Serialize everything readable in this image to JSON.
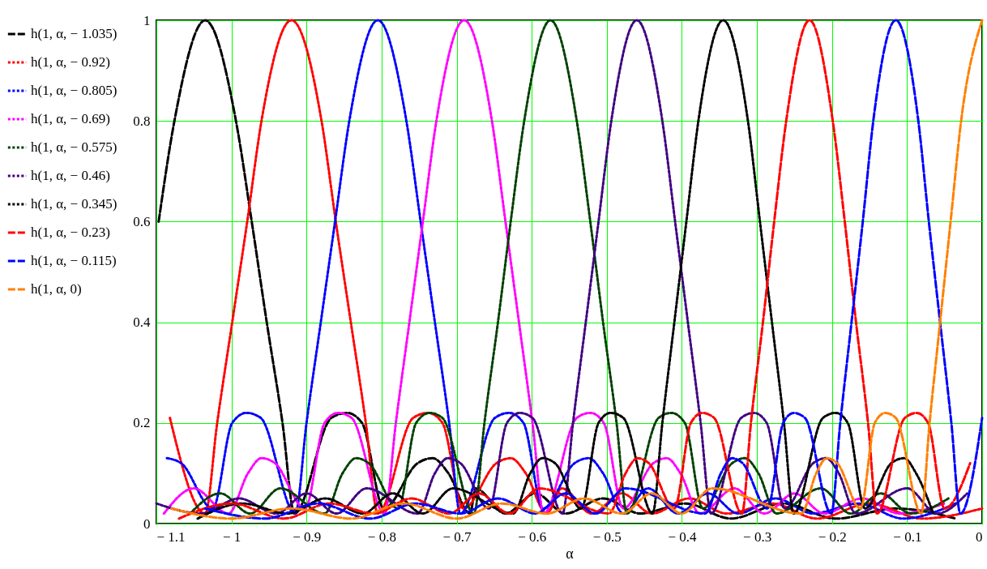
{
  "chart_data": {
    "type": "line",
    "xlabel": "α",
    "xlim": [
      -1.1,
      0
    ],
    "ylim": [
      0,
      1
    ],
    "xticks": [
      {
        "value": -1.1,
        "label": "− 1.1"
      },
      {
        "value": -1,
        "label": "− 1"
      },
      {
        "value": -0.9,
        "label": "− 0.9"
      },
      {
        "value": -0.8,
        "label": "− 0.8"
      },
      {
        "value": -0.7,
        "label": "− 0.7"
      },
      {
        "value": -0.6,
        "label": "− 0.6"
      },
      {
        "value": -0.5,
        "label": "− 0.5"
      },
      {
        "value": -0.4,
        "label": "− 0.4"
      },
      {
        "value": -0.3,
        "label": "− 0.3"
      },
      {
        "value": -0.2,
        "label": "− 0.2"
      },
      {
        "value": -0.1,
        "label": "− 0.1"
      },
      0
    ],
    "yticks": [
      0,
      0.2,
      0.4,
      0.6,
      0.8,
      1
    ],
    "grid": true,
    "legend": "left",
    "marker": "none",
    "series": [
      {
        "name": "h(1, α, − 1.035)",
        "color": "#000000",
        "line_style": "dashed",
        "x": [
          -1.097,
          -1.076,
          -1.035,
          -0.994,
          -0.973,
          -0.953,
          -0.932,
          -0.916,
          -0.867,
          -0.846,
          -0.826,
          -0.797,
          -0.752,
          -0.732,
          -0.711,
          -0.682,
          -0.675,
          -0.635,
          -0.595,
          -0.555,
          -0.505,
          -0.455,
          -0.395,
          -0.335,
          -0.265,
          -0.195,
          -0.115,
          -0.035
        ],
        "values": [
          0.6,
          0.8,
          1,
          0.8,
          0.6,
          0.4,
          0.2,
          0.02,
          0.21,
          0.22,
          0.2,
          0.03,
          0.12,
          0.13,
          0.1,
          0.02,
          0.07,
          0.02,
          0.06,
          0.02,
          0.05,
          0.02,
          0.04,
          0.01,
          0.04,
          0.01,
          0.03,
          0.01
        ]
      },
      {
        "name": "h(1, α, − 0.92)",
        "color": "#ff0000",
        "line_style": "dotted",
        "x": [
          -1.082,
          -1.035,
          -1.019,
          -0.999,
          -0.979,
          -0.96,
          -0.92,
          -0.88,
          -0.861,
          -0.841,
          -0.821,
          -0.805,
          -0.758,
          -0.738,
          -0.719,
          -0.691,
          -0.647,
          -0.628,
          -0.608,
          -0.58,
          -0.56,
          -0.52,
          -0.48,
          -0.44,
          -0.39,
          -0.34,
          -0.28,
          -0.22,
          -0.15,
          -0.08,
          0
        ],
        "values": [
          0.21,
          0.02,
          0.2,
          0.4,
          0.6,
          0.8,
          1,
          0.8,
          0.6,
          0.4,
          0.2,
          0.02,
          0.21,
          0.22,
          0.2,
          0.03,
          0.12,
          0.13,
          0.1,
          0.02,
          0.07,
          0.02,
          0.06,
          0.02,
          0.05,
          0.02,
          0.04,
          0.01,
          0.04,
          0.01,
          0.03
        ]
      },
      {
        "name": "h(1, α, − 0.805)",
        "color": "#0000ff",
        "line_style": "dotted",
        "x": [
          -1.086,
          -1.067,
          -1.025,
          -0.999,
          -0.98,
          -0.961,
          -0.915,
          -0.9,
          -0.881,
          -0.862,
          -0.843,
          -0.805,
          -0.767,
          -0.748,
          -0.729,
          -0.71,
          -0.695,
          -0.649,
          -0.63,
          -0.611,
          -0.585,
          -0.543,
          -0.524,
          -0.505,
          -0.478,
          -0.445,
          -0.405,
          -0.365,
          -0.325,
          -0.275,
          -0.225,
          -0.165,
          -0.105,
          -0.035
        ],
        "values": [
          0.13,
          0.12,
          0.03,
          0.2,
          0.22,
          0.21,
          0.02,
          0.2,
          0.4,
          0.6,
          0.8,
          1,
          0.8,
          0.6,
          0.4,
          0.2,
          0.02,
          0.21,
          0.22,
          0.2,
          0.03,
          0.12,
          0.13,
          0.1,
          0.02,
          0.07,
          0.02,
          0.06,
          0.02,
          0.05,
          0.02,
          0.04,
          0.01,
          0.04
        ]
      },
      {
        "name": "h(1, α, − 0.69)",
        "color": "#ff00ff",
        "line_style": "dotted",
        "x": [
          -1.09,
          -1.05,
          -1.004,
          -0.978,
          -0.96,
          -0.942,
          -0.902,
          -0.876,
          -0.858,
          -0.84,
          -0.796,
          -0.781,
          -0.763,
          -0.745,
          -0.727,
          -0.69,
          -0.653,
          -0.635,
          -0.617,
          -0.599,
          -0.584,
          -0.54,
          -0.522,
          -0.504,
          -0.478,
          -0.438,
          -0.42,
          -0.402,
          -0.376,
          -0.33,
          -0.29,
          -0.25,
          -0.21,
          -0.16,
          -0.11,
          -0.05
        ],
        "values": [
          0.02,
          0.07,
          0.02,
          0.1,
          0.13,
          0.12,
          0.03,
          0.2,
          0.22,
          0.21,
          0.02,
          0.2,
          0.4,
          0.6,
          0.8,
          1,
          0.8,
          0.6,
          0.4,
          0.2,
          0.02,
          0.21,
          0.22,
          0.2,
          0.03,
          0.12,
          0.13,
          0.1,
          0.02,
          0.07,
          0.02,
          0.06,
          0.02,
          0.05,
          0.02,
          0.04
        ]
      },
      {
        "name": "h(1, α, − 0.575)",
        "color": "#004000",
        "line_style": "dotted",
        "x": [
          -1.055,
          -1.015,
          -0.975,
          -0.935,
          -0.876,
          -0.852,
          -0.834,
          -0.817,
          -0.778,
          -0.754,
          -0.736,
          -0.719,
          -0.677,
          -0.663,
          -0.645,
          -0.628,
          -0.61,
          -0.575,
          -0.54,
          -0.522,
          -0.505,
          -0.487,
          -0.473,
          -0.431,
          -0.414,
          -0.396,
          -0.372,
          -0.333,
          -0.316,
          -0.298,
          -0.274,
          -0.215,
          -0.175,
          -0.135,
          -0.095,
          -0.045
        ],
        "values": [
          0.02,
          0.06,
          0.02,
          0.07,
          0.02,
          0.1,
          0.13,
          0.12,
          0.03,
          0.2,
          0.22,
          0.21,
          0.02,
          0.2,
          0.4,
          0.6,
          0.8,
          1,
          0.8,
          0.6,
          0.4,
          0.2,
          0.02,
          0.21,
          0.22,
          0.2,
          0.03,
          0.12,
          0.13,
          0.1,
          0.02,
          0.07,
          0.02,
          0.06,
          0.02,
          0.05
        ]
      },
      {
        "name": "h(1, α, − 0.46)",
        "color": "#400080",
        "line_style": "dotted",
        "x": [
          -1.1,
          -1.04,
          -0.99,
          -0.94,
          -0.9,
          -0.86,
          -0.82,
          -0.752,
          -0.729,
          -0.712,
          -0.695,
          -0.657,
          -0.633,
          -0.616,
          -0.599,
          -0.559,
          -0.545,
          -0.528,
          -0.511,
          -0.494,
          -0.46,
          -0.426,
          -0.409,
          -0.392,
          -0.375,
          -0.361,
          -0.321,
          -0.304,
          -0.287,
          -0.263,
          -0.225,
          -0.208,
          -0.191,
          -0.168,
          -0.1,
          -0.06,
          -0.02
        ],
        "values": [
          0.04,
          0.02,
          0.05,
          0.02,
          0.06,
          0.02,
          0.07,
          0.02,
          0.1,
          0.13,
          0.12,
          0.03,
          0.2,
          0.22,
          0.21,
          0.02,
          0.2,
          0.4,
          0.6,
          0.8,
          1,
          0.8,
          0.6,
          0.4,
          0.2,
          0.02,
          0.21,
          0.22,
          0.2,
          0.03,
          0.12,
          0.13,
          0.1,
          0.02,
          0.07,
          0.02,
          0.06
        ]
      },
      {
        "name": "h(1, α, − 0.345)",
        "color": "#000000",
        "line_style": "dotted",
        "x": [
          -1.045,
          -0.985,
          -0.925,
          -0.875,
          -0.825,
          -0.785,
          -0.745,
          -0.705,
          -0.625,
          -0.602,
          -0.586,
          -0.569,
          -0.534,
          -0.511,
          -0.495,
          -0.478,
          -0.439,
          -0.426,
          -0.41,
          -0.394,
          -0.378,
          -0.345,
          -0.312,
          -0.296,
          -0.28,
          -0.264,
          -0.251,
          -0.212,
          -0.195,
          -0.179,
          -0.156,
          -0.121,
          -0.104,
          -0.088,
          -0.065
        ],
        "values": [
          0.01,
          0.04,
          0.02,
          0.05,
          0.02,
          0.06,
          0.02,
          0.07,
          0.02,
          0.1,
          0.13,
          0.12,
          0.03,
          0.2,
          0.22,
          0.21,
          0.02,
          0.2,
          0.4,
          0.6,
          0.8,
          1,
          0.8,
          0.6,
          0.4,
          0.2,
          0.02,
          0.21,
          0.22,
          0.2,
          0.03,
          0.12,
          0.13,
          0.1,
          0.02
        ]
      },
      {
        "name": "h(1, α, − 0.23)",
        "color": "#ff0000",
        "line_style": "dashed",
        "x": [
          -1.07,
          -1.0,
          -0.93,
          -0.87,
          -0.81,
          -0.76,
          -0.71,
          -0.67,
          -0.63,
          -0.59,
          -0.497,
          -0.475,
          -0.459,
          -0.444,
          -0.41,
          -0.388,
          -0.373,
          -0.357,
          -0.32,
          -0.308,
          -0.292,
          -0.277,
          -0.261,
          -0.23,
          -0.199,
          -0.183,
          -0.168,
          -0.152,
          -0.14,
          -0.103,
          -0.087,
          -0.072,
          -0.05,
          -0.016
        ],
        "values": [
          0.01,
          0.04,
          0.01,
          0.04,
          0.02,
          0.05,
          0.02,
          0.06,
          0.02,
          0.07,
          0.02,
          0.1,
          0.13,
          0.12,
          0.03,
          0.2,
          0.22,
          0.21,
          0.02,
          0.2,
          0.4,
          0.6,
          0.8,
          1,
          0.8,
          0.6,
          0.4,
          0.2,
          0.02,
          0.21,
          0.22,
          0.2,
          0.03,
          0.12
        ]
      },
      {
        "name": "h(1, α, − 0.115)",
        "color": "#0000ff",
        "line_style": "dashed",
        "x": [
          -1.035,
          -0.955,
          -0.885,
          -0.815,
          -0.755,
          -0.695,
          -0.645,
          -0.595,
          -0.555,
          -0.515,
          -0.475,
          -0.369,
          -0.348,
          -0.333,
          -0.319,
          -0.286,
          -0.265,
          -0.251,
          -0.236,
          -0.201,
          -0.189,
          -0.174,
          -0.159,
          -0.145,
          -0.115,
          -0.085,
          -0.071,
          -0.056,
          -0.041,
          -0.029,
          0
        ],
        "values": [
          0.03,
          0.01,
          0.04,
          0.01,
          0.04,
          0.02,
          0.05,
          0.02,
          0.06,
          0.02,
          0.07,
          0.02,
          0.1,
          0.13,
          0.12,
          0.03,
          0.2,
          0.22,
          0.21,
          0.02,
          0.2,
          0.4,
          0.6,
          0.8,
          1,
          0.8,
          0.6,
          0.4,
          0.2,
          0.02,
          0.21
        ]
      },
      {
        "name": "h(1, α, 0)",
        "color": "#ff8000",
        "line_style": "dashed",
        "x": [
          -1.08,
          -1.0,
          -0.92,
          -0.84,
          -0.77,
          -0.7,
          -0.64,
          -0.58,
          -0.53,
          -0.48,
          -0.44,
          -0.4,
          -0.36,
          -0.241,
          -0.221,
          -0.207,
          -0.193,
          -0.162,
          -0.143,
          -0.129,
          -0.115,
          -0.081,
          -0.07,
          -0.056,
          -0.042,
          -0.028,
          0
        ],
        "values": [
          0.03,
          0.01,
          0.03,
          0.01,
          0.04,
          0.01,
          0.04,
          0.02,
          0.05,
          0.02,
          0.06,
          0.02,
          0.07,
          0.02,
          0.1,
          0.13,
          0.12,
          0.03,
          0.2,
          0.22,
          0.21,
          0.02,
          0.2,
          0.4,
          0.6,
          0.8,
          1
        ]
      }
    ]
  }
}
